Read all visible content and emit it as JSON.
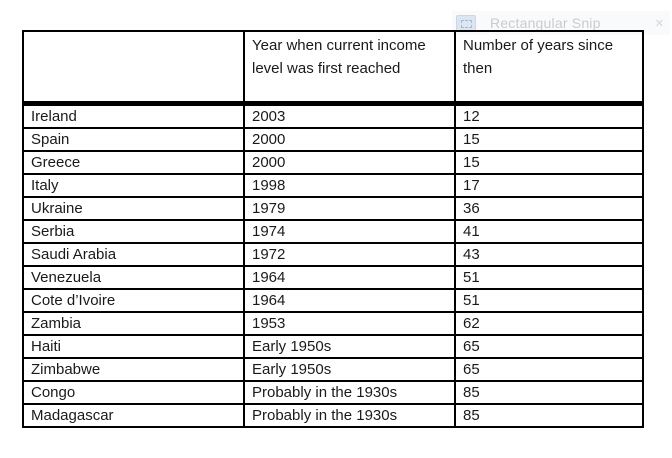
{
  "overlay": {
    "label": "Rectangular Snip",
    "icon": "rectangular-snip-icon",
    "close_glyph": "✕",
    "icon_color": "#dce6f3",
    "text_color": "#c9cbcd"
  },
  "colors": {
    "page_background": "#ffffff",
    "table_border": "#000000",
    "text": "#1a1a1a"
  },
  "table": {
    "columns": [
      "",
      "Year when current income level was first reached",
      "Number of years since then"
    ],
    "rows": [
      {
        "country": "Ireland",
        "year": "2003",
        "since": "12"
      },
      {
        "country": "Spain",
        "year": "2000",
        "since": "15"
      },
      {
        "country": "Greece",
        "year": "2000",
        "since": "15"
      },
      {
        "country": "Italy",
        "year": "1998",
        "since": "17"
      },
      {
        "country": "Ukraine",
        "year": "1979",
        "since": "36"
      },
      {
        "country": "Serbia",
        "year": "1974",
        "since": "41"
      },
      {
        "country": "Saudi Arabia",
        "year": "1972",
        "since": "43"
      },
      {
        "country": "Venezuela",
        "year": "1964",
        "since": "51"
      },
      {
        "country": "Cote d’Ivoire",
        "year": "1964",
        "since": "51"
      },
      {
        "country": "Zambia",
        "year": "1953",
        "since": "62"
      },
      {
        "country": "Haiti",
        "year": "Early 1950s",
        "since": "65"
      },
      {
        "country": "Zimbabwe",
        "year": "Early 1950s",
        "since": "65"
      },
      {
        "country": "Congo",
        "year": "Probably in the 1930s",
        "since": "85"
      },
      {
        "country": "Madagascar",
        "year": "Probably in the 1930s",
        "since": "85"
      }
    ]
  }
}
